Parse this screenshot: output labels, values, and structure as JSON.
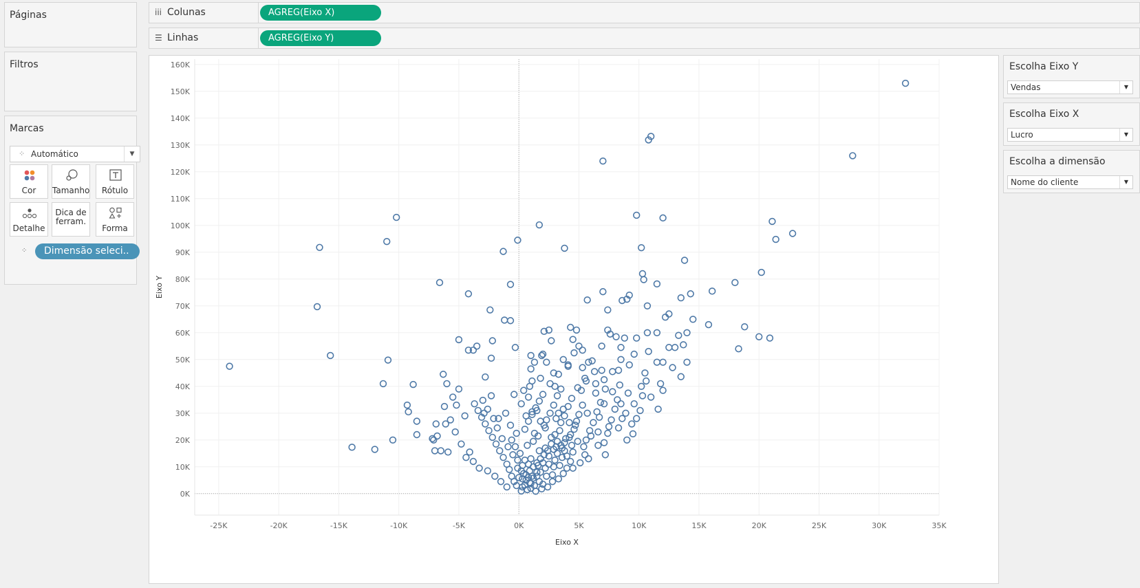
{
  "left_panel": {
    "pages_title": "Páginas",
    "filters_title": "Filtros",
    "marks_title": "Marcas",
    "mark_type": "Automático",
    "cards": [
      {
        "label": "Cor",
        "icon": "color-icon"
      },
      {
        "label": "Tamanho",
        "icon": "size-icon"
      },
      {
        "label": "Rótulo",
        "icon": "label-icon"
      },
      {
        "label": "Detalhe",
        "icon": "detail-icon"
      },
      {
        "label": "Dica de ferram.",
        "icon": "tooltip-icon"
      },
      {
        "label": "Forma",
        "icon": "shape-icon"
      }
    ],
    "detail_pill": "Dimensão seleci.."
  },
  "shelves": {
    "columns_label": "Colunas",
    "columns_pill": "AGREG(Eixo X)",
    "rows_label": "Linhas",
    "rows_pill": "AGREG(Eixo Y)"
  },
  "parameters": [
    {
      "title": "Escolha Eixo Y",
      "value": "Vendas"
    },
    {
      "title": "Escolha Eixo X",
      "value": "Lucro"
    },
    {
      "title": "Escolha a dimensão",
      "value": "Nome do cliente"
    }
  ],
  "colors": {
    "accent_pill": "#0aa57c",
    "detail_pill": "#4a94b8",
    "mark": "#4e79a7"
  },
  "chart_data": {
    "type": "scatter",
    "xlabel": "Eixo X",
    "ylabel": "Eixo Y",
    "xlim": [
      -27000,
      35000
    ],
    "ylim": [
      -8000,
      162000
    ],
    "x_ticks": [
      -25000,
      -20000,
      -15000,
      -10000,
      -5000,
      0,
      5000,
      10000,
      15000,
      20000,
      25000,
      30000,
      35000
    ],
    "x_tick_labels": [
      "-25K",
      "-20K",
      "-15K",
      "-10K",
      "-5K",
      "0K",
      "5K",
      "10K",
      "15K",
      "20K",
      "25K",
      "30K",
      "35K"
    ],
    "y_ticks": [
      0,
      10000,
      20000,
      30000,
      40000,
      50000,
      60000,
      70000,
      80000,
      90000,
      100000,
      110000,
      120000,
      130000,
      140000,
      150000,
      160000
    ],
    "y_tick_labels": [
      "0K",
      "10K",
      "20K",
      "30K",
      "40K",
      "50K",
      "60K",
      "70K",
      "80K",
      "90K",
      "100K",
      "110K",
      "120K",
      "130K",
      "140K",
      "150K",
      "160K"
    ],
    "grid": true,
    "marker": "hollow-circle",
    "points": [
      [
        32200,
        153000
      ],
      [
        27800,
        126000
      ],
      [
        22800,
        97000
      ],
      [
        21400,
        94800
      ],
      [
        21100,
        101500
      ],
      [
        20200,
        82500
      ],
      [
        20900,
        58000
      ],
      [
        20000,
        58500
      ],
      [
        18800,
        62200
      ],
      [
        18300,
        54000
      ],
      [
        18000,
        78700
      ],
      [
        16100,
        75500
      ],
      [
        15800,
        63000
      ],
      [
        14500,
        65000
      ],
      [
        14300,
        74500
      ],
      [
        14000,
        60000
      ],
      [
        13800,
        87000
      ],
      [
        14000,
        49000
      ],
      [
        13500,
        73000
      ],
      [
        13500,
        43600
      ],
      [
        13700,
        55500
      ],
      [
        13300,
        59000
      ],
      [
        13000,
        54500
      ],
      [
        12800,
        47000
      ],
      [
        12500,
        67000
      ],
      [
        12500,
        54500
      ],
      [
        12200,
        65800
      ],
      [
        12000,
        102800
      ],
      [
        12000,
        49000
      ],
      [
        11800,
        41000
      ],
      [
        11500,
        78200
      ],
      [
        11500,
        60000
      ],
      [
        11500,
        49000
      ],
      [
        11000,
        133200
      ],
      [
        10800,
        131900
      ],
      [
        10700,
        70000
      ],
      [
        10700,
        60000
      ],
      [
        10800,
        53000
      ],
      [
        10500,
        45000
      ],
      [
        10600,
        42000
      ],
      [
        10300,
        82000
      ],
      [
        10400,
        79800
      ],
      [
        10200,
        91700
      ],
      [
        10200,
        40000
      ],
      [
        10300,
        36500
      ],
      [
        9800,
        103800
      ],
      [
        9800,
        28000
      ],
      [
        9500,
        22300
      ],
      [
        9400,
        26000
      ],
      [
        9800,
        58000
      ],
      [
        9200,
        74000
      ],
      [
        9200,
        48000
      ],
      [
        9000,
        72500
      ],
      [
        8900,
        30000
      ],
      [
        8600,
        72000
      ],
      [
        8500,
        33500
      ],
      [
        8500,
        54500
      ],
      [
        8500,
        50000
      ],
      [
        8300,
        46000
      ],
      [
        8200,
        35000
      ],
      [
        8100,
        58500
      ],
      [
        7800,
        45500
      ],
      [
        7600,
        59500
      ],
      [
        7500,
        25000
      ],
      [
        7400,
        68500
      ],
      [
        7400,
        61000
      ],
      [
        7200,
        39000
      ],
      [
        7100,
        33500
      ],
      [
        7000,
        124000
      ],
      [
        7000,
        75300
      ],
      [
        6900,
        55000
      ],
      [
        6700,
        28500
      ],
      [
        6600,
        23000
      ],
      [
        6400,
        41000
      ],
      [
        6300,
        45500
      ],
      [
        5800,
        49000
      ],
      [
        5700,
        72200
      ],
      [
        5700,
        30000
      ],
      [
        5800,
        13000
      ],
      [
        5500,
        43000
      ],
      [
        5300,
        53500
      ],
      [
        5200,
        38500
      ],
      [
        5000,
        55000
      ],
      [
        4800,
        61000
      ],
      [
        4500,
        57500
      ],
      [
        4300,
        62000
      ],
      [
        4100,
        48000
      ],
      [
        3800,
        91500
      ],
      [
        3700,
        50000
      ],
      [
        3500,
        39000
      ],
      [
        3300,
        30000
      ],
      [
        3000,
        40000
      ],
      [
        2900,
        45000
      ],
      [
        2700,
        57000
      ],
      [
        2500,
        61000
      ],
      [
        2300,
        49000
      ],
      [
        2100,
        60500
      ],
      [
        1900,
        51500
      ],
      [
        1800,
        43000
      ],
      [
        1700,
        100200
      ],
      [
        1500,
        31000
      ],
      [
        1300,
        49000
      ],
      [
        1100,
        42000
      ],
      [
        800,
        36000
      ],
      [
        400,
        38500
      ],
      [
        -100,
        94500
      ],
      [
        -300,
        54500
      ],
      [
        -700,
        78000
      ],
      [
        -700,
        64500
      ],
      [
        -1200,
        64700
      ],
      [
        -1300,
        90300
      ],
      [
        -2200,
        57000
      ],
      [
        -2400,
        68500
      ],
      [
        -2300,
        50500
      ],
      [
        -2800,
        43500
      ],
      [
        -3500,
        55000
      ],
      [
        -3800,
        53500
      ],
      [
        -4200,
        74500
      ],
      [
        -4200,
        53500
      ],
      [
        -5000,
        39000
      ],
      [
        -5000,
        57400
      ],
      [
        -5500,
        36000
      ],
      [
        -6000,
        41000
      ],
      [
        -6100,
        26000
      ],
      [
        -6300,
        44500
      ],
      [
        -6600,
        78700
      ],
      [
        -6500,
        16000
      ],
      [
        -7000,
        16000
      ],
      [
        -7200,
        20500
      ],
      [
        -8500,
        22000
      ],
      [
        -8500,
        27000
      ],
      [
        -8800,
        40700
      ],
      [
        -9200,
        30500
      ],
      [
        -9300,
        33000
      ],
      [
        -10200,
        103000
      ],
      [
        -10500,
        20000
      ],
      [
        -10900,
        49800
      ],
      [
        -11000,
        94000
      ],
      [
        -11300,
        41000
      ],
      [
        -12000,
        16500
      ],
      [
        -13900,
        17300
      ],
      [
        -15700,
        51500
      ],
      [
        -16600,
        91800
      ],
      [
        -16800,
        69700
      ],
      [
        -24100,
        47500
      ],
      [
        700,
        1500
      ],
      [
        300,
        2500
      ],
      [
        900,
        4000
      ],
      [
        1200,
        5800
      ],
      [
        500,
        3200
      ],
      [
        1500,
        6500
      ],
      [
        1800,
        8000
      ],
      [
        2000,
        3500
      ],
      [
        2200,
        9500
      ],
      [
        2500,
        11000
      ],
      [
        2800,
        7000
      ],
      [
        3000,
        12500
      ],
      [
        3200,
        15000
      ],
      [
        3400,
        10500
      ],
      [
        3600,
        17000
      ],
      [
        3800,
        19000
      ],
      [
        4000,
        14000
      ],
      [
        4200,
        21000
      ],
      [
        4400,
        18000
      ],
      [
        4600,
        24000
      ],
      [
        3000,
        22000
      ],
      [
        2700,
        18500
      ],
      [
        2400,
        16000
      ],
      [
        2100,
        14500
      ],
      [
        1800,
        13000
      ],
      [
        1500,
        11500
      ],
      [
        1200,
        10000
      ],
      [
        900,
        8500
      ],
      [
        600,
        7000
      ],
      [
        300,
        5500
      ],
      [
        -200,
        3000
      ],
      [
        -400,
        4500
      ],
      [
        -600,
        6500
      ],
      [
        -800,
        9000
      ],
      [
        -1000,
        11000
      ],
      [
        -1300,
        13500
      ],
      [
        -1600,
        16000
      ],
      [
        -1900,
        18500
      ],
      [
        -2200,
        21000
      ],
      [
        -2500,
        23500
      ],
      [
        -2800,
        26000
      ],
      [
        -3100,
        28500
      ],
      [
        -3400,
        31000
      ],
      [
        -3700,
        33500
      ],
      [
        -600,
        20000
      ],
      [
        -300,
        17500
      ],
      [
        100,
        15000
      ],
      [
        500,
        24000
      ],
      [
        800,
        27000
      ],
      [
        1100,
        29500
      ],
      [
        1400,
        32000
      ],
      [
        1700,
        34500
      ],
      [
        2000,
        37000
      ],
      [
        2300,
        27500
      ],
      [
        2600,
        30000
      ],
      [
        2900,
        33000
      ],
      [
        3200,
        36500
      ],
      [
        3500,
        26500
      ],
      [
        3800,
        29000
      ],
      [
        4100,
        32500
      ],
      [
        4400,
        35500
      ],
      [
        4700,
        25500
      ],
      [
        5000,
        29500
      ],
      [
        5300,
        33000
      ],
      [
        5600,
        20000
      ],
      [
        5900,
        23500
      ],
      [
        6200,
        26500
      ],
      [
        6500,
        30500
      ],
      [
        6800,
        34000
      ],
      [
        7100,
        19000
      ],
      [
        7400,
        22500
      ],
      [
        7700,
        27500
      ],
      [
        8000,
        31500
      ],
      [
        8300,
        24500
      ],
      [
        8600,
        28000
      ],
      [
        9000,
        20000
      ],
      [
        4300,
        12000
      ],
      [
        4000,
        9500
      ],
      [
        3700,
        7500
      ],
      [
        3300,
        5500
      ],
      [
        2800,
        4500
      ],
      [
        2400,
        2500
      ],
      [
        1900,
        1800
      ],
      [
        1400,
        900
      ],
      [
        1000,
        3800
      ],
      [
        600,
        5000
      ],
      [
        200,
        8500
      ],
      [
        -100,
        12500
      ],
      [
        -500,
        14500
      ],
      [
        -900,
        17500
      ],
      [
        -1400,
        20500
      ],
      [
        -1800,
        24500
      ],
      [
        -2100,
        28000
      ],
      [
        -2600,
        31500
      ],
      [
        -3000,
        34800
      ],
      [
        -4100,
        15500
      ],
      [
        -4800,
        18500
      ],
      [
        -5300,
        23000
      ],
      [
        -5700,
        27500
      ],
      [
        -6200,
        32500
      ],
      [
        -6800,
        21500
      ],
      [
        -3800,
        12000
      ],
      [
        -3300,
        9500
      ],
      [
        -2600,
        8500
      ],
      [
        -2000,
        6500
      ],
      [
        -1500,
        4500
      ],
      [
        -1000,
        2500
      ],
      [
        1600,
        21500
      ],
      [
        2200,
        24500
      ],
      [
        3100,
        17500
      ],
      [
        3600,
        13500
      ],
      [
        4500,
        15500
      ],
      [
        4900,
        19500
      ],
      [
        5400,
        17500
      ],
      [
        6000,
        21500
      ],
      [
        6600,
        18000
      ],
      [
        7200,
        14500
      ],
      [
        2600,
        41000
      ],
      [
        3300,
        44500
      ],
      [
        4100,
        47500
      ],
      [
        4900,
        39500
      ],
      [
        5600,
        42000
      ],
      [
        6400,
        37500
      ],
      [
        7100,
        42500
      ],
      [
        7800,
        38000
      ],
      [
        8400,
        40500
      ],
      [
        9100,
        37500
      ],
      [
        9600,
        33500
      ],
      [
        10100,
        31000
      ],
      [
        11000,
        36000
      ],
      [
        11600,
        31500
      ],
      [
        12000,
        38500
      ],
      [
        1000,
        46500
      ],
      [
        200,
        33500
      ],
      [
        -400,
        37000
      ],
      [
        -1100,
        30000
      ],
      [
        -1700,
        28000
      ],
      [
        -2300,
        36500
      ],
      [
        -2900,
        30000
      ],
      [
        -4500,
        29000
      ],
      [
        -5200,
        33000
      ],
      [
        -7100,
        20000
      ],
      [
        -6900,
        26000
      ],
      [
        -5900,
        15500
      ],
      [
        -4400,
        13500
      ],
      [
        2000,
        52000
      ],
      [
        1000,
        51500
      ],
      [
        4600,
        52500
      ],
      [
        5300,
        47000
      ],
      [
        6100,
        49500
      ],
      [
        6900,
        46000
      ],
      [
        8800,
        58000
      ],
      [
        9600,
        52000
      ],
      [
        900,
        40000
      ],
      [
        1200,
        19500
      ],
      [
        2700,
        21000
      ],
      [
        3400,
        23500
      ],
      [
        3900,
        20500
      ],
      [
        4200,
        26500
      ],
      [
        3500,
        18000
      ],
      [
        2900,
        16500
      ],
      [
        2500,
        14000
      ],
      [
        2000,
        11500
      ],
      [
        1700,
        16000
      ],
      [
        1300,
        22500
      ],
      [
        700,
        18000
      ],
      [
        1000,
        13000
      ],
      [
        1500,
        8000
      ],
      [
        800,
        11000
      ],
      [
        300,
        10500
      ],
      [
        -200,
        22500
      ],
      [
        -700,
        25500
      ],
      [
        3100,
        28000
      ],
      [
        3700,
        31500
      ],
      [
        4300,
        22000
      ],
      [
        4800,
        27000
      ],
      [
        3200,
        19500
      ],
      [
        2100,
        25500
      ],
      [
        1800,
        27000
      ],
      [
        1100,
        30500
      ],
      [
        600,
        29000
      ],
      [
        3800,
        16000
      ],
      [
        4500,
        9500
      ],
      [
        5100,
        11500
      ],
      [
        5500,
        14500
      ],
      [
        2300,
        6500
      ],
      [
        2900,
        10000
      ],
      [
        1700,
        4500
      ],
      [
        1100,
        6500
      ],
      [
        500,
        12500
      ],
      [
        -100,
        9500
      ],
      [
        0,
        6000
      ],
      [
        200,
        1000
      ],
      [
        1000,
        2000
      ],
      [
        1300,
        3000
      ],
      [
        800,
        6000
      ],
      [
        400,
        7500
      ],
      [
        1600,
        10500
      ],
      [
        2200,
        17000
      ]
    ]
  }
}
